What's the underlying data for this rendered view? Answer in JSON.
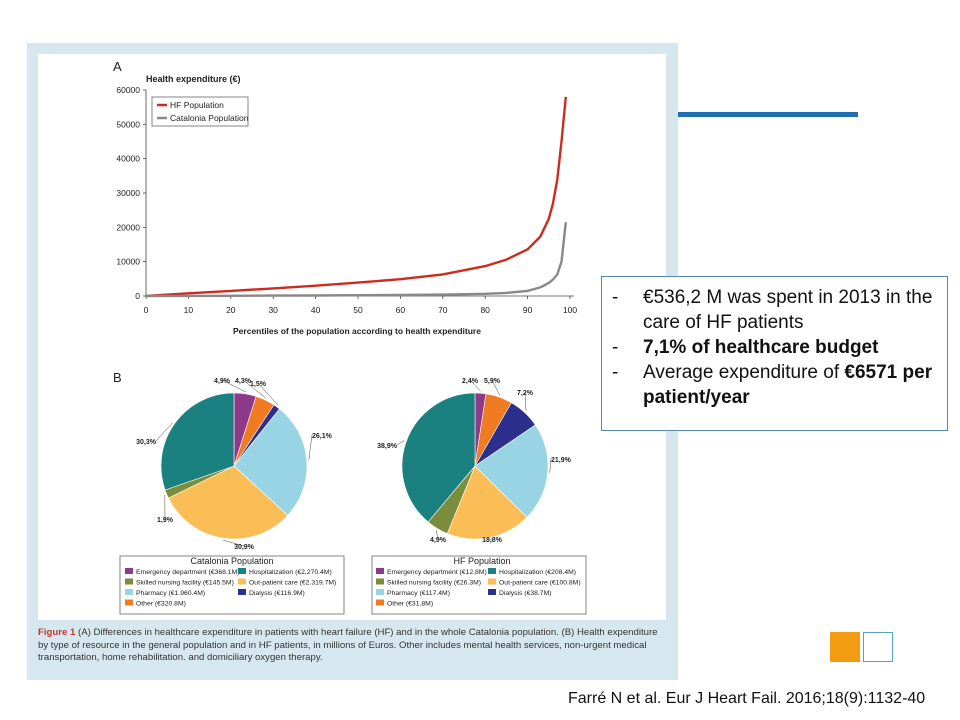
{
  "figure": {
    "panel_a": {
      "label": "A",
      "ylabel": "Health expenditure (€)",
      "xlabel": "Percentiles of the population according to health expenditure",
      "legend": [
        "HF Population",
        "Catalonia Population"
      ],
      "y_ticks": [
        "0",
        "10000",
        "20000",
        "30000",
        "40000",
        "50000",
        "60000"
      ],
      "x_ticks": [
        "0",
        "10",
        "20",
        "30",
        "40",
        "50",
        "60",
        "70",
        "80",
        "90",
        "100"
      ]
    },
    "panel_b": {
      "label": "B",
      "catalonia": {
        "title": "Catalonia Population",
        "slices": [
          {
            "label": "4,9%",
            "value": 4.9,
            "color": "#8e3a8a"
          },
          {
            "label": "4,3%",
            "value": 4.3,
            "color": "#f07b22"
          },
          {
            "label": "1,5%",
            "value": 1.5,
            "color": "#2d2f8c"
          },
          {
            "label": "26,1%",
            "value": 26.1,
            "color": "#98d4e4"
          },
          {
            "label": "30,9%",
            "value": 30.9,
            "color": "#fbbd56"
          },
          {
            "label": "1,9%",
            "value": 1.9,
            "color": "#7b8d3a"
          },
          {
            "label": "30,3%",
            "value": 30.3,
            "color": "#1a8080"
          }
        ],
        "legend": [
          "Emergency department (€368.1M)",
          "Hospitalization (€2,270.4M)",
          "Skilled nursing facility (€145.5M)",
          "Out-patient care (€2.319.7M)",
          "Pharmacy (€1.960.4M)",
          "Dialysis (€116.9M)",
          "Other (€320.8M)"
        ]
      },
      "hf": {
        "title": "HF Population",
        "slices": [
          {
            "label": "2,4%",
            "value": 2.4,
            "color": "#8e3a8a"
          },
          {
            "label": "5,9%",
            "value": 5.9,
            "color": "#f07b22"
          },
          {
            "label": "7,2%",
            "value": 7.2,
            "color": "#2d2f8c"
          },
          {
            "label": "21,9%",
            "value": 21.9,
            "color": "#98d4e4"
          },
          {
            "label": "18,8%",
            "value": 18.8,
            "color": "#fbbd56"
          },
          {
            "label": "4,9%",
            "value": 4.9,
            "color": "#7b8d3a"
          },
          {
            "label": "38,9%",
            "value": 38.9,
            "color": "#1a8080"
          }
        ],
        "legend": [
          "Emergency department (€12,8M)",
          "Hospitalization (€208.4M)",
          "Skilled nursing facility (€26.3M)",
          "Out-patient care (€100.8M)",
          "Pharmacy (€117.4M)",
          "Dialysis (€38.7M)",
          "Other (€31.8M)"
        ]
      },
      "legend_colors": [
        "#8e3a8a",
        "#1a8080",
        "#7b8d3a",
        "#fbbd56",
        "#98d4e4",
        "#2d2f8c",
        "#f07b22"
      ]
    },
    "caption_label": "Figure 1",
    "caption_text": "(A) Differences in healthcare expenditure in patients with heart failure (HF) and in the whole Catalonia population. (B) Health expenditure by type of resource in the general population and in HF patients, in millions of Euros. Other includes mental health services, non-urgent medical transportation, home rehabilitation. and domiciliary oxygen therapy."
  },
  "bullets": {
    "b1": "€536,2 M was spent in 2013 in the care of HF patients",
    "b2": "7,1% of healthcare budget",
    "b3_pre": "Average expenditure of ",
    "b3_bold": "€6571 per patient/year",
    "dash": "-"
  },
  "citation": "Farré N et al. Eur J Heart Fail. 2016;18(9):1132-40",
  "chart_data": [
    {
      "type": "line",
      "ylabel": "Health expenditure (€)",
      "xlabel": "Percentiles of the population according to health expenditure",
      "xlim": [
        0,
        100
      ],
      "ylim": [
        0,
        60000
      ],
      "grid": false,
      "legend_position": "top-left",
      "series": [
        {
          "name": "HF Population",
          "color": "#cc2b1e",
          "x": [
            0,
            10,
            20,
            30,
            40,
            50,
            60,
            70,
            80,
            85,
            90,
            93,
            95,
            96,
            97,
            98,
            99
          ],
          "y": [
            0,
            800,
            1500,
            2200,
            3000,
            3900,
            4900,
            6300,
            8700,
            10600,
            13600,
            17300,
            22500,
            27000,
            34000,
            45000,
            58000
          ]
        },
        {
          "name": "Catalonia Population",
          "color": "#888888",
          "x": [
            0,
            10,
            20,
            30,
            40,
            50,
            60,
            70,
            80,
            85,
            90,
            93,
            95,
            96,
            97,
            98,
            99
          ],
          "y": [
            0,
            30,
            70,
            110,
            160,
            220,
            300,
            420,
            650,
            900,
            1500,
            2500,
            3800,
            4800,
            6300,
            10000,
            21500
          ]
        }
      ]
    },
    {
      "type": "pie",
      "title": "Catalonia Population",
      "labels": [
        "Emergency department",
        "Other",
        "Dialysis",
        "Pharmacy",
        "Out-patient care",
        "Skilled nursing facility",
        "Hospitalization"
      ],
      "values": [
        4.9,
        4.3,
        1.5,
        26.1,
        30.9,
        1.9,
        30.3
      ]
    },
    {
      "type": "pie",
      "title": "HF Population",
      "labels": [
        "Emergency department",
        "Other",
        "Dialysis",
        "Pharmacy",
        "Out-patient care",
        "Skilled nursing facility",
        "Hospitalization"
      ],
      "values": [
        2.4,
        5.9,
        7.2,
        21.9,
        18.8,
        4.9,
        38.9
      ]
    }
  ]
}
